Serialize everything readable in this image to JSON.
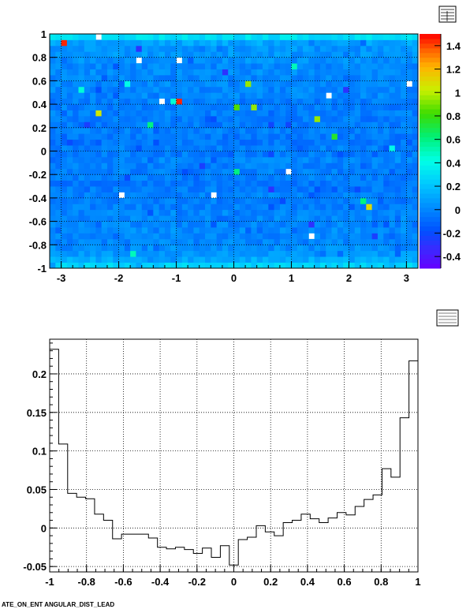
{
  "chart_data": [
    {
      "type": "heatmap",
      "title": "",
      "xlabel": "",
      "ylabel": "",
      "xlim": [
        -3.2,
        3.2
      ],
      "ylim": [
        -1,
        1
      ],
      "x_ticks": [
        "-3",
        "-2",
        "-1",
        "0",
        "1",
        "2",
        "3"
      ],
      "y_ticks": [
        "-1",
        "-0.8",
        "-0.6",
        "-0.4",
        "-0.2",
        "0",
        "0.2",
        "0.4",
        "0.6",
        "0.8",
        "1"
      ],
      "z_range": [
        -0.5,
        1.5
      ],
      "colorbar_ticks": [
        "-0.4",
        "-0.2",
        "0",
        "0.2",
        "0.4",
        "0.6",
        "0.8",
        "1",
        "1.2",
        "1.4"
      ],
      "grid": true,
      "bins_x": 64,
      "bins_y": 40,
      "row_profile": [
        0.25,
        0.12,
        0.05,
        0.02,
        0.0,
        0.0,
        0.02,
        0.0,
        0.0,
        0.0,
        -0.02,
        -0.03,
        -0.02,
        -0.03,
        -0.05,
        -0.03,
        -0.02,
        -0.02,
        0.0,
        -0.03,
        -0.02,
        -0.05,
        -0.04,
        -0.02,
        -0.04,
        -0.03,
        -0.02,
        -0.03,
        -0.03,
        0.0,
        0.0,
        0.01,
        0.0,
        0.02,
        0.0,
        0.03,
        0.05,
        0.05,
        0.1,
        0.3
      ],
      "hot_cells": [
        {
          "x": -2.94,
          "y": 0.93,
          "z": 1.45
        },
        {
          "x": -0.94,
          "y": 0.43,
          "z": 1.45
        },
        {
          "x": -2.36,
          "y": 0.33,
          "z": 1.05
        },
        {
          "x": 2.34,
          "y": -0.47,
          "z": 1.1
        },
        {
          "x": 0.24,
          "y": 0.58,
          "z": 0.95
        },
        {
          "x": 0.34,
          "y": 0.38,
          "z": 0.95
        },
        {
          "x": 1.44,
          "y": 0.27,
          "z": 0.95
        },
        {
          "x": 0.04,
          "y": 0.38,
          "z": 0.85
        },
        {
          "x": 1.74,
          "y": 0.12,
          "z": 0.75
        },
        {
          "x": -1.44,
          "y": 0.23,
          "z": 0.6
        },
        {
          "x": 0.04,
          "y": -0.18,
          "z": 0.6
        },
        {
          "x": 2.24,
          "y": -0.42,
          "z": 0.6
        },
        {
          "x": 1.04,
          "y": 0.73,
          "z": 0.5
        },
        {
          "x": -1.84,
          "y": 0.58,
          "z": 0.4
        },
        {
          "x": -2.64,
          "y": 0.53,
          "z": 0.45
        },
        {
          "x": -1.74,
          "y": -0.88,
          "z": 0.5
        },
        {
          "x": 2.74,
          "y": 0.03,
          "z": 0.4
        },
        {
          "x": -1.04,
          "y": 0.43,
          "z": 0.45
        },
        {
          "x": -1.64,
          "y": 0.88,
          "z": -0.3
        },
        {
          "x": -0.14,
          "y": 0.68,
          "z": -0.3
        },
        {
          "x": 0.64,
          "y": -0.33,
          "z": -0.3
        },
        {
          "x": 1.34,
          "y": -0.63,
          "z": -0.3
        },
        {
          "x": -2.54,
          "y": 0.23,
          "z": -0.25
        },
        {
          "x": 1.94,
          "y": 0.53,
          "z": -0.3
        },
        {
          "x": 2.44,
          "y": -0.73,
          "z": -0.25
        },
        {
          "x": -0.54,
          "y": -0.13,
          "z": -0.25
        }
      ],
      "empty_cells": [
        {
          "x": -2.4,
          "y": 0.98
        },
        {
          "x": -1.7,
          "y": 0.78
        },
        {
          "x": -0.95,
          "y": 0.78
        },
        {
          "x": 3.05,
          "y": 0.58
        },
        {
          "x": 1.65,
          "y": 0.48
        },
        {
          "x": -1.25,
          "y": 0.43
        },
        {
          "x": 0.95,
          "y": -0.18
        },
        {
          "x": -2.0,
          "y": -0.37
        },
        {
          "x": -0.4,
          "y": -0.37
        },
        {
          "x": 1.3,
          "y": -0.72
        }
      ]
    },
    {
      "type": "line",
      "step": true,
      "title": "",
      "xlabel": "",
      "ylabel": "",
      "xlim": [
        -1,
        1
      ],
      "ylim": [
        -0.057,
        0.245
      ],
      "x_ticks": [
        "-1",
        "-0.8",
        "-0.6",
        "-0.4",
        "-0.2",
        "0",
        "0.2",
        "0.4",
        "0.6",
        "0.8",
        "1"
      ],
      "y_ticks": [
        "-0.05",
        "0",
        "0.05",
        "0.1",
        "0.15",
        "0.2"
      ],
      "grid": true,
      "bin_edges_start": -1,
      "bin_width": 0.05,
      "values": [
        0.232,
        0.109,
        0.045,
        0.04,
        0.038,
        0.018,
        0.01,
        -0.014,
        -0.008,
        -0.008,
        -0.008,
        -0.013,
        -0.025,
        -0.027,
        -0.025,
        -0.028,
        -0.033,
        -0.026,
        -0.038,
        -0.023,
        -0.048,
        -0.015,
        -0.012,
        0.003,
        -0.005,
        -0.01,
        0.007,
        0.01,
        0.018,
        0.012,
        0.007,
        0.013,
        0.02,
        0.017,
        0.028,
        0.037,
        0.043,
        0.077,
        0.066,
        0.143,
        0.217
      ]
    }
  ],
  "footer": {
    "text": "ATE_ON_ENT ANGULAR_DIST_LEAD"
  }
}
